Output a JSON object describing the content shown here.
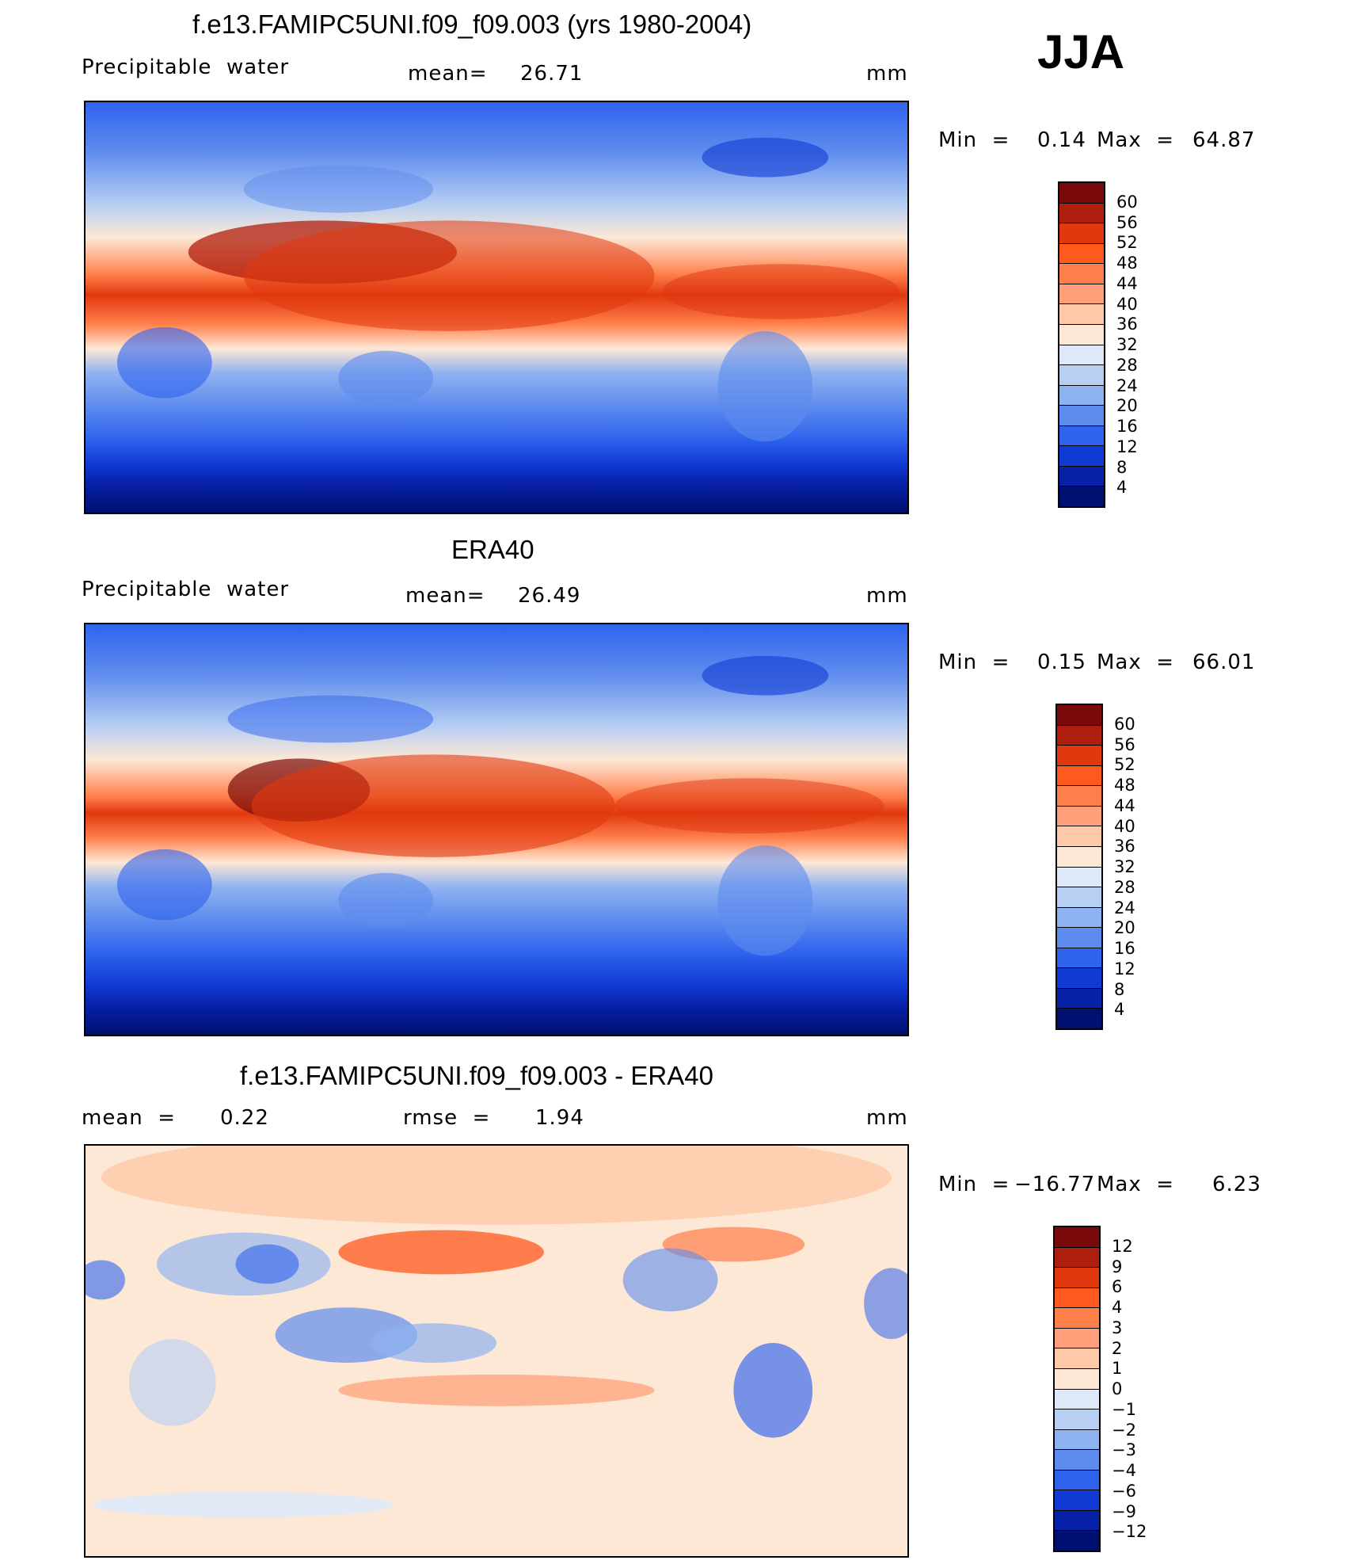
{
  "season": "JJA",
  "panels": [
    {
      "title": "f.e13.FAMIPC5UNI.f09_f09.003 (yrs 1980-2004)",
      "variable": "Precipitable  water",
      "mean_label": "mean=",
      "mean_value": "26.71",
      "units": "mm",
      "minmax": {
        "min_label": "Min  =",
        "min": "0.14",
        "max_label": "Max  =",
        "max": "64.87"
      },
      "colorbar": {
        "levels": [
          "60",
          "56",
          "52",
          "48",
          "44",
          "40",
          "36",
          "32",
          "28",
          "24",
          "20",
          "16",
          "12",
          "8",
          "4"
        ],
        "colors": [
          "#7a0a0a",
          "#b01e0e",
          "#e0380f",
          "#ff5a1e",
          "#ff7f4a",
          "#ffa07a",
          "#ffc8a8",
          "#fde8d6",
          "#dde9f8",
          "#b7cff3",
          "#8fb2f0",
          "#5e8cee",
          "#2f63ee",
          "#103ad4",
          "#0720a8",
          "#001070"
        ]
      }
    },
    {
      "title": "ERA40",
      "variable": "Precipitable  water",
      "mean_label": "mean=",
      "mean_value": "26.49",
      "units": "mm",
      "minmax": {
        "min_label": "Min  =",
        "min": "0.15",
        "max_label": "Max  =",
        "max": "66.01"
      },
      "colorbar": {
        "levels": [
          "60",
          "56",
          "52",
          "48",
          "44",
          "40",
          "36",
          "32",
          "28",
          "24",
          "20",
          "16",
          "12",
          "8",
          "4"
        ],
        "colors": [
          "#7a0a0a",
          "#b01e0e",
          "#e0380f",
          "#ff5a1e",
          "#ff7f4a",
          "#ffa07a",
          "#ffc8a8",
          "#fde8d6",
          "#dde9f8",
          "#b7cff3",
          "#8fb2f0",
          "#5e8cee",
          "#2f63ee",
          "#103ad4",
          "#0720a8",
          "#001070"
        ]
      }
    },
    {
      "title": "f.e13.FAMIPC5UNI.f09_f09.003 - ERA40",
      "mean_label": "mean  =",
      "mean_value": "0.22",
      "rmse_label": "rmse  =",
      "rmse_value": "1.94",
      "units": "mm",
      "minmax": {
        "min_label": "Min  =",
        "min": "−16.77",
        "max_label": "Max  =",
        "max": "6.23"
      },
      "colorbar": {
        "levels": [
          "12",
          "9",
          "6",
          "4",
          "3",
          "2",
          "1",
          "0",
          "−1",
          "−2",
          "−3",
          "−4",
          "−6",
          "−9",
          "−12"
        ],
        "colors": [
          "#7a0a0a",
          "#b01e0e",
          "#e0380f",
          "#ff5a1e",
          "#ff7f4a",
          "#ffa07a",
          "#ffc8a8",
          "#fde8d6",
          "#dde9f8",
          "#b7cff3",
          "#8fb2f0",
          "#5e8cee",
          "#2f63ee",
          "#103ad4",
          "#0720a8",
          "#001070"
        ]
      }
    }
  ]
}
